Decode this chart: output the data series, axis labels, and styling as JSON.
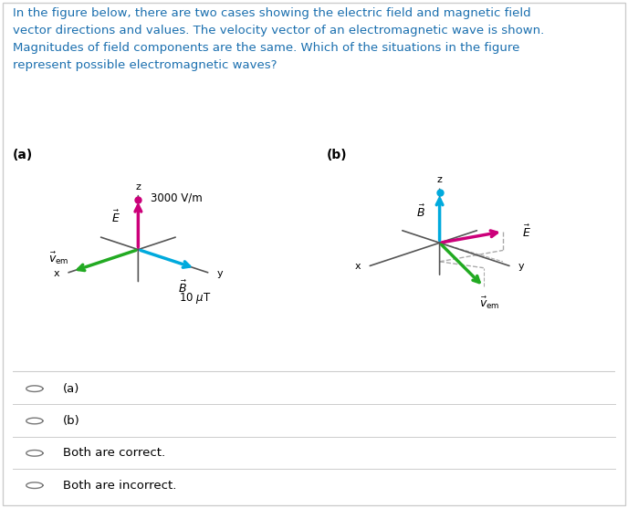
{
  "title_text": "In the figure below, there are two cases showing the electric field and magnetic field\nvector directions and values. The velocity vector of an electromagnetic wave is shown.\nMagnitudes of field components are the same. Which of the situations in the figure\nrepresent possible electromagnetic waves?",
  "title_color": "#1a6faf",
  "background_color": "#ffffff",
  "label_a": "(a)",
  "label_b": "(b)",
  "options": [
    "(a)",
    "(b)",
    "Both are correct.",
    "Both are incorrect."
  ],
  "colors": {
    "E_field": "#cc007a",
    "B_field": "#00aadd",
    "v_em": "#22aa22",
    "axes": "#555555",
    "dashed": "#aaaaaa"
  },
  "fig_width": 6.88,
  "fig_height": 5.57
}
